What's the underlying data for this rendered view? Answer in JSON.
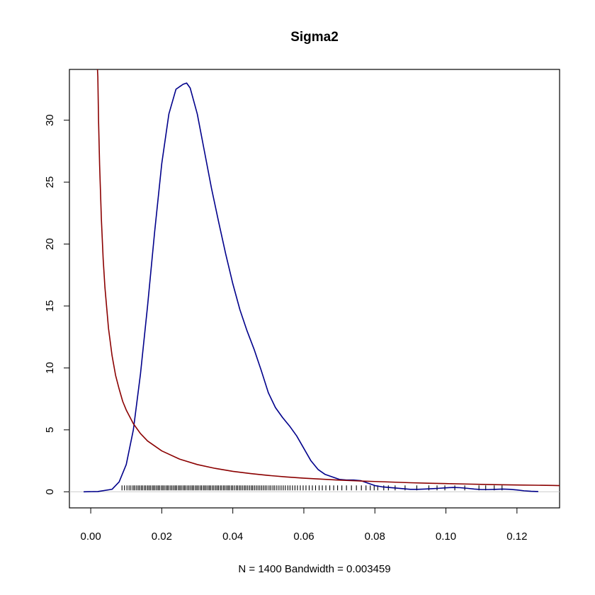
{
  "chart_data": {
    "type": "line",
    "title": "Sigma2",
    "xlabel": "N = 1400   Bandwidth = 0.003459",
    "ylabel": "",
    "xlim": [
      -0.006,
      0.132
    ],
    "ylim": [
      -1.3,
      34.1
    ],
    "x_ticks": [
      0.0,
      0.02,
      0.04,
      0.06,
      0.08,
      0.1,
      0.12
    ],
    "x_tick_labels": [
      "0.00",
      "0.02",
      "0.04",
      "0.06",
      "0.08",
      "0.10",
      "0.12"
    ],
    "y_ticks": [
      0,
      5,
      10,
      15,
      20,
      25,
      30
    ],
    "y_tick_labels": [
      "0",
      "5",
      "10",
      "15",
      "20",
      "25",
      "30"
    ],
    "grid": false,
    "legend": "none",
    "series": [
      {
        "color": "#00008B",
        "x": [
          -0.002,
          0.002,
          0.006,
          0.008,
          0.01,
          0.012,
          0.014,
          0.016,
          0.018,
          0.02,
          0.022,
          0.024,
          0.026,
          0.027,
          0.028,
          0.03,
          0.032,
          0.034,
          0.036,
          0.038,
          0.04,
          0.042,
          0.044,
          0.046,
          0.048,
          0.05,
          0.052,
          0.054,
          0.056,
          0.058,
          0.06,
          0.062,
          0.064,
          0.066,
          0.068,
          0.07,
          0.072,
          0.074,
          0.076,
          0.078,
          0.08,
          0.082,
          0.084,
          0.086,
          0.088,
          0.09,
          0.092,
          0.094,
          0.096,
          0.098,
          0.1,
          0.102,
          0.104,
          0.106,
          0.108,
          0.11,
          0.112,
          0.114,
          0.116,
          0.118,
          0.12,
          0.122,
          0.124,
          0.126
        ],
        "y": [
          0.0,
          0.02,
          0.2,
          0.8,
          2.2,
          5.0,
          9.5,
          15.0,
          21.0,
          26.5,
          30.5,
          32.5,
          32.9,
          33.0,
          32.6,
          30.5,
          27.5,
          24.5,
          21.8,
          19.2,
          16.8,
          14.7,
          13.0,
          11.5,
          9.8,
          8.0,
          6.8,
          6.0,
          5.3,
          4.5,
          3.5,
          2.5,
          1.8,
          1.4,
          1.2,
          1.0,
          0.95,
          0.95,
          0.9,
          0.7,
          0.5,
          0.4,
          0.35,
          0.3,
          0.25,
          0.2,
          0.2,
          0.22,
          0.25,
          0.28,
          0.32,
          0.35,
          0.33,
          0.28,
          0.22,
          0.18,
          0.18,
          0.2,
          0.22,
          0.2,
          0.15,
          0.08,
          0.04,
          0.02
        ]
      },
      {
        "color": "#8B0000",
        "x": [
          0.0019,
          0.002,
          0.0022,
          0.0025,
          0.003,
          0.0035,
          0.004,
          0.005,
          0.006,
          0.007,
          0.008,
          0.009,
          0.01,
          0.012,
          0.014,
          0.016,
          0.018,
          0.02,
          0.025,
          0.03,
          0.035,
          0.04,
          0.045,
          0.05,
          0.055,
          0.06,
          0.065,
          0.07,
          0.075,
          0.08,
          0.085,
          0.09,
          0.095,
          0.1,
          0.105,
          0.11,
          0.115,
          0.12,
          0.125,
          0.13,
          0.132
        ],
        "y": [
          34.1,
          33.5,
          30.0,
          26.4,
          22.0,
          18.8,
          16.5,
          13.2,
          11.0,
          9.4,
          8.3,
          7.3,
          6.6,
          5.5,
          4.7,
          4.1,
          3.7,
          3.3,
          2.64,
          2.2,
          1.89,
          1.65,
          1.47,
          1.32,
          1.2,
          1.1,
          1.02,
          0.94,
          0.88,
          0.83,
          0.78,
          0.73,
          0.69,
          0.66,
          0.63,
          0.6,
          0.57,
          0.55,
          0.53,
          0.51,
          0.5
        ]
      }
    ],
    "rug": [
      0.0088,
      0.0095,
      0.0102,
      0.0108,
      0.0113,
      0.0119,
      0.0123,
      0.0128,
      0.0133,
      0.0137,
      0.0142,
      0.0146,
      0.0151,
      0.0155,
      0.016,
      0.0164,
      0.0168,
      0.0173,
      0.0177,
      0.0181,
      0.0186,
      0.019,
      0.0194,
      0.0199,
      0.0203,
      0.0207,
      0.0212,
      0.0216,
      0.022,
      0.0225,
      0.0229,
      0.0234,
      0.0238,
      0.0242,
      0.0247,
      0.0251,
      0.0255,
      0.026,
      0.0264,
      0.0268,
      0.0273,
      0.0277,
      0.0282,
      0.0286,
      0.029,
      0.0295,
      0.0299,
      0.0303,
      0.0308,
      0.0312,
      0.0317,
      0.0321,
      0.0325,
      0.033,
      0.0334,
      0.0338,
      0.0343,
      0.0347,
      0.0352,
      0.0356,
      0.036,
      0.0365,
      0.0369,
      0.0374,
      0.0378,
      0.0383,
      0.0387,
      0.0391,
      0.0396,
      0.04,
      0.0405,
      0.041,
      0.0414,
      0.0419,
      0.0423,
      0.0428,
      0.0433,
      0.0437,
      0.0442,
      0.0447,
      0.0452,
      0.0456,
      0.0461,
      0.0466,
      0.0471,
      0.0476,
      0.0481,
      0.0486,
      0.0491,
      0.0496,
      0.0502,
      0.0507,
      0.0513,
      0.0518,
      0.0524,
      0.053,
      0.0536,
      0.0542,
      0.0548,
      0.0555,
      0.0561,
      0.0568,
      0.0575,
      0.0582,
      0.059,
      0.0598,
      0.0606,
      0.0615,
      0.0624,
      0.0633,
      0.0643,
      0.0652,
      0.0662,
      0.0673,
      0.0684,
      0.0695,
      0.0707,
      0.072,
      0.0734,
      0.0748,
      0.0762,
      0.0775,
      0.0787,
      0.0798,
      0.0808,
      0.0825,
      0.0838,
      0.0857,
      0.0885,
      0.0918,
      0.0952,
      0.0975,
      0.0997,
      0.1025,
      0.1053,
      0.1093,
      0.1112,
      0.1136,
      0.1158
    ]
  }
}
